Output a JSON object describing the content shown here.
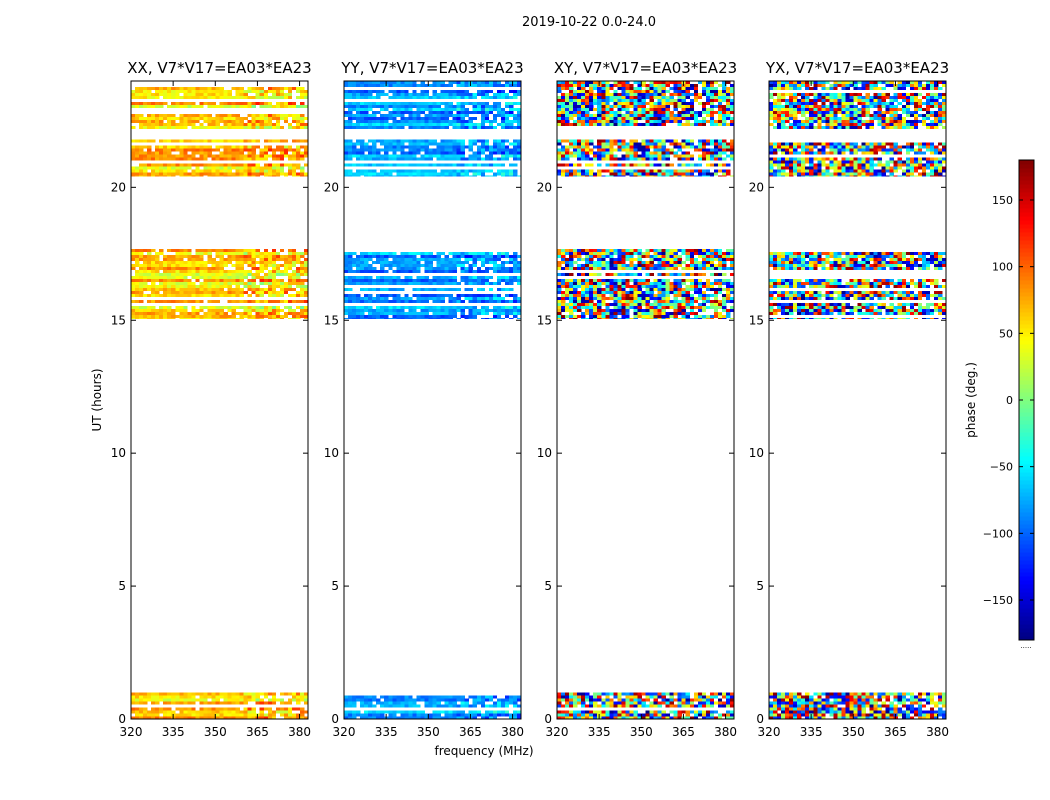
{
  "figure": {
    "suptitle": "2019-10-22 0.0-24.0",
    "xlabel": "frequency (MHz)",
    "ylabel": "UT (hours)",
    "colorbar_label": "phase (deg.)",
    "colorbar_note": "....."
  },
  "chart_data": {
    "type": "heatmap",
    "colormap": "jet",
    "vmin": -180,
    "vmax": 180,
    "xlim": [
      320,
      383
    ],
    "ylim": [
      0,
      24
    ],
    "xticks": [
      320,
      335,
      350,
      365,
      380
    ],
    "yticks": [
      0,
      5,
      10,
      15,
      20
    ],
    "colorbar_ticks": [
      -150,
      -100,
      -50,
      0,
      50,
      100,
      150
    ],
    "colorbar_tick_labels": [
      "−150",
      "−100",
      "−50",
      "0",
      "50",
      "100",
      "150"
    ],
    "data_time_ranges_hours": [
      [
        0.0,
        1.0
      ],
      [
        15.05,
        17.8
      ],
      [
        20.4,
        21.8
      ],
      [
        22.2,
        24.0
      ]
    ],
    "panels": [
      {
        "title": "XX, V7*V17=EA03*EA23",
        "mean_phase_deg": 60,
        "spread_deg": 60
      },
      {
        "title": "YY, V7*V17=EA03*EA23",
        "mean_phase_deg": -80,
        "spread_deg": 50
      },
      {
        "title": "XY, V7*V17=EA03*EA23",
        "mean_phase_deg": 0,
        "spread_deg": 180
      },
      {
        "title": "YX, V7*V17=EA03*EA23",
        "mean_phase_deg": 0,
        "spread_deg": 180
      }
    ]
  }
}
